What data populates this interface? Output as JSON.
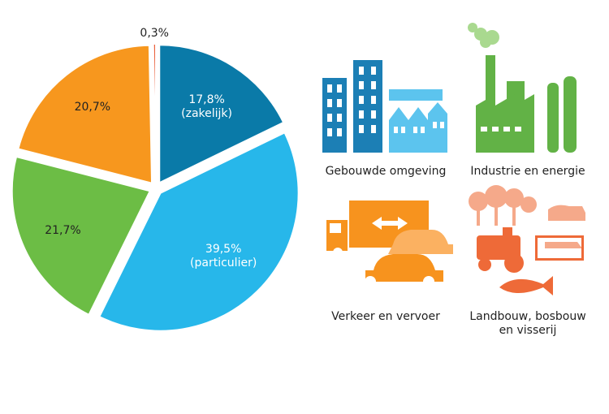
{
  "chart_data": {
    "type": "pie",
    "start_angle_deg": 0,
    "direction": "clockwise",
    "slices": [
      {
        "value": 17.8,
        "label": "17,8%",
        "sublabel": "(zakelijk)",
        "color": "#0a7aa8",
        "text_color": "#ffffff"
      },
      {
        "value": 39.5,
        "label": "39,5%",
        "sublabel": "(particulier)",
        "color": "#27b7ea",
        "text_color": "#ffffff"
      },
      {
        "value": 21.7,
        "label": "21,7%",
        "sublabel": "",
        "color": "#6cbd45",
        "text_color": "#222222"
      },
      {
        "value": 20.7,
        "label": "20,7%",
        "sublabel": "",
        "color": "#f7971e",
        "text_color": "#222222"
      },
      {
        "value": 0.3,
        "label": "0,3%",
        "sublabel": "",
        "color": "#e8542c",
        "text_color": "#222222"
      }
    ]
  },
  "sectors": [
    {
      "lines": [
        "Gebouwde omgeving"
      ],
      "icon": "buildings-icon",
      "color": "#1c7fb5"
    },
    {
      "lines": [
        "Industrie en energie"
      ],
      "icon": "factory-icon",
      "color": "#62b246"
    },
    {
      "lines": [
        "Verkeer en vervoer"
      ],
      "icon": "truck-cars-icon",
      "color": "#f7931e"
    },
    {
      "lines": [
        "Landbouw, bosbouw",
        "en visserij"
      ],
      "icon": "farm-fish-icon",
      "color": "#ee6a38"
    }
  ]
}
